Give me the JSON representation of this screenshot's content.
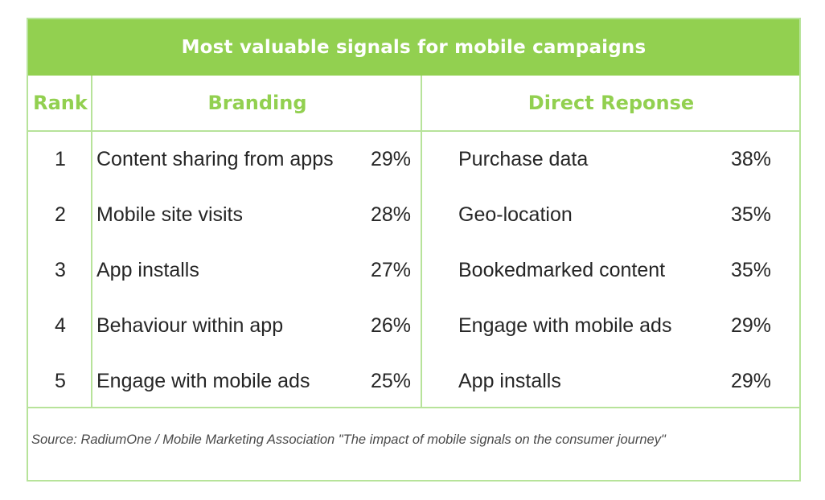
{
  "chart_data": {
    "type": "table",
    "title": "Most valuable signals for mobile campaigns",
    "columns": [
      "Rank",
      "Branding",
      "Direct Reponse"
    ],
    "rows": [
      {
        "rank": "1",
        "branding": {
          "label": "Content sharing from apps",
          "value": "29%"
        },
        "direct": {
          "label": "Purchase data",
          "value": "38%"
        }
      },
      {
        "rank": "2",
        "branding": {
          "label": "Mobile site visits",
          "value": "28%"
        },
        "direct": {
          "label": "Geo-location",
          "value": "35%"
        }
      },
      {
        "rank": "3",
        "branding": {
          "label": "App installs",
          "value": "27%"
        },
        "direct": {
          "label": "Bookedmarked content",
          "value": "35%"
        }
      },
      {
        "rank": "4",
        "branding": {
          "label": "Behaviour within app",
          "value": "26%"
        },
        "direct": {
          "label": "Engage with mobile ads",
          "value": "29%"
        }
      },
      {
        "rank": "5",
        "branding": {
          "label": "Engage with mobile ads",
          "value": "25%"
        },
        "direct": {
          "label": "App installs",
          "value": "29%"
        }
      }
    ],
    "source": "Source: RadiumOne / Mobile Marketing Association \"The impact of mobile signals on the consumer journey\""
  },
  "colors": {
    "accent": "#92d050",
    "border": "#b7e39a",
    "text": "#262626",
    "source_text": "#4a4a4a"
  }
}
